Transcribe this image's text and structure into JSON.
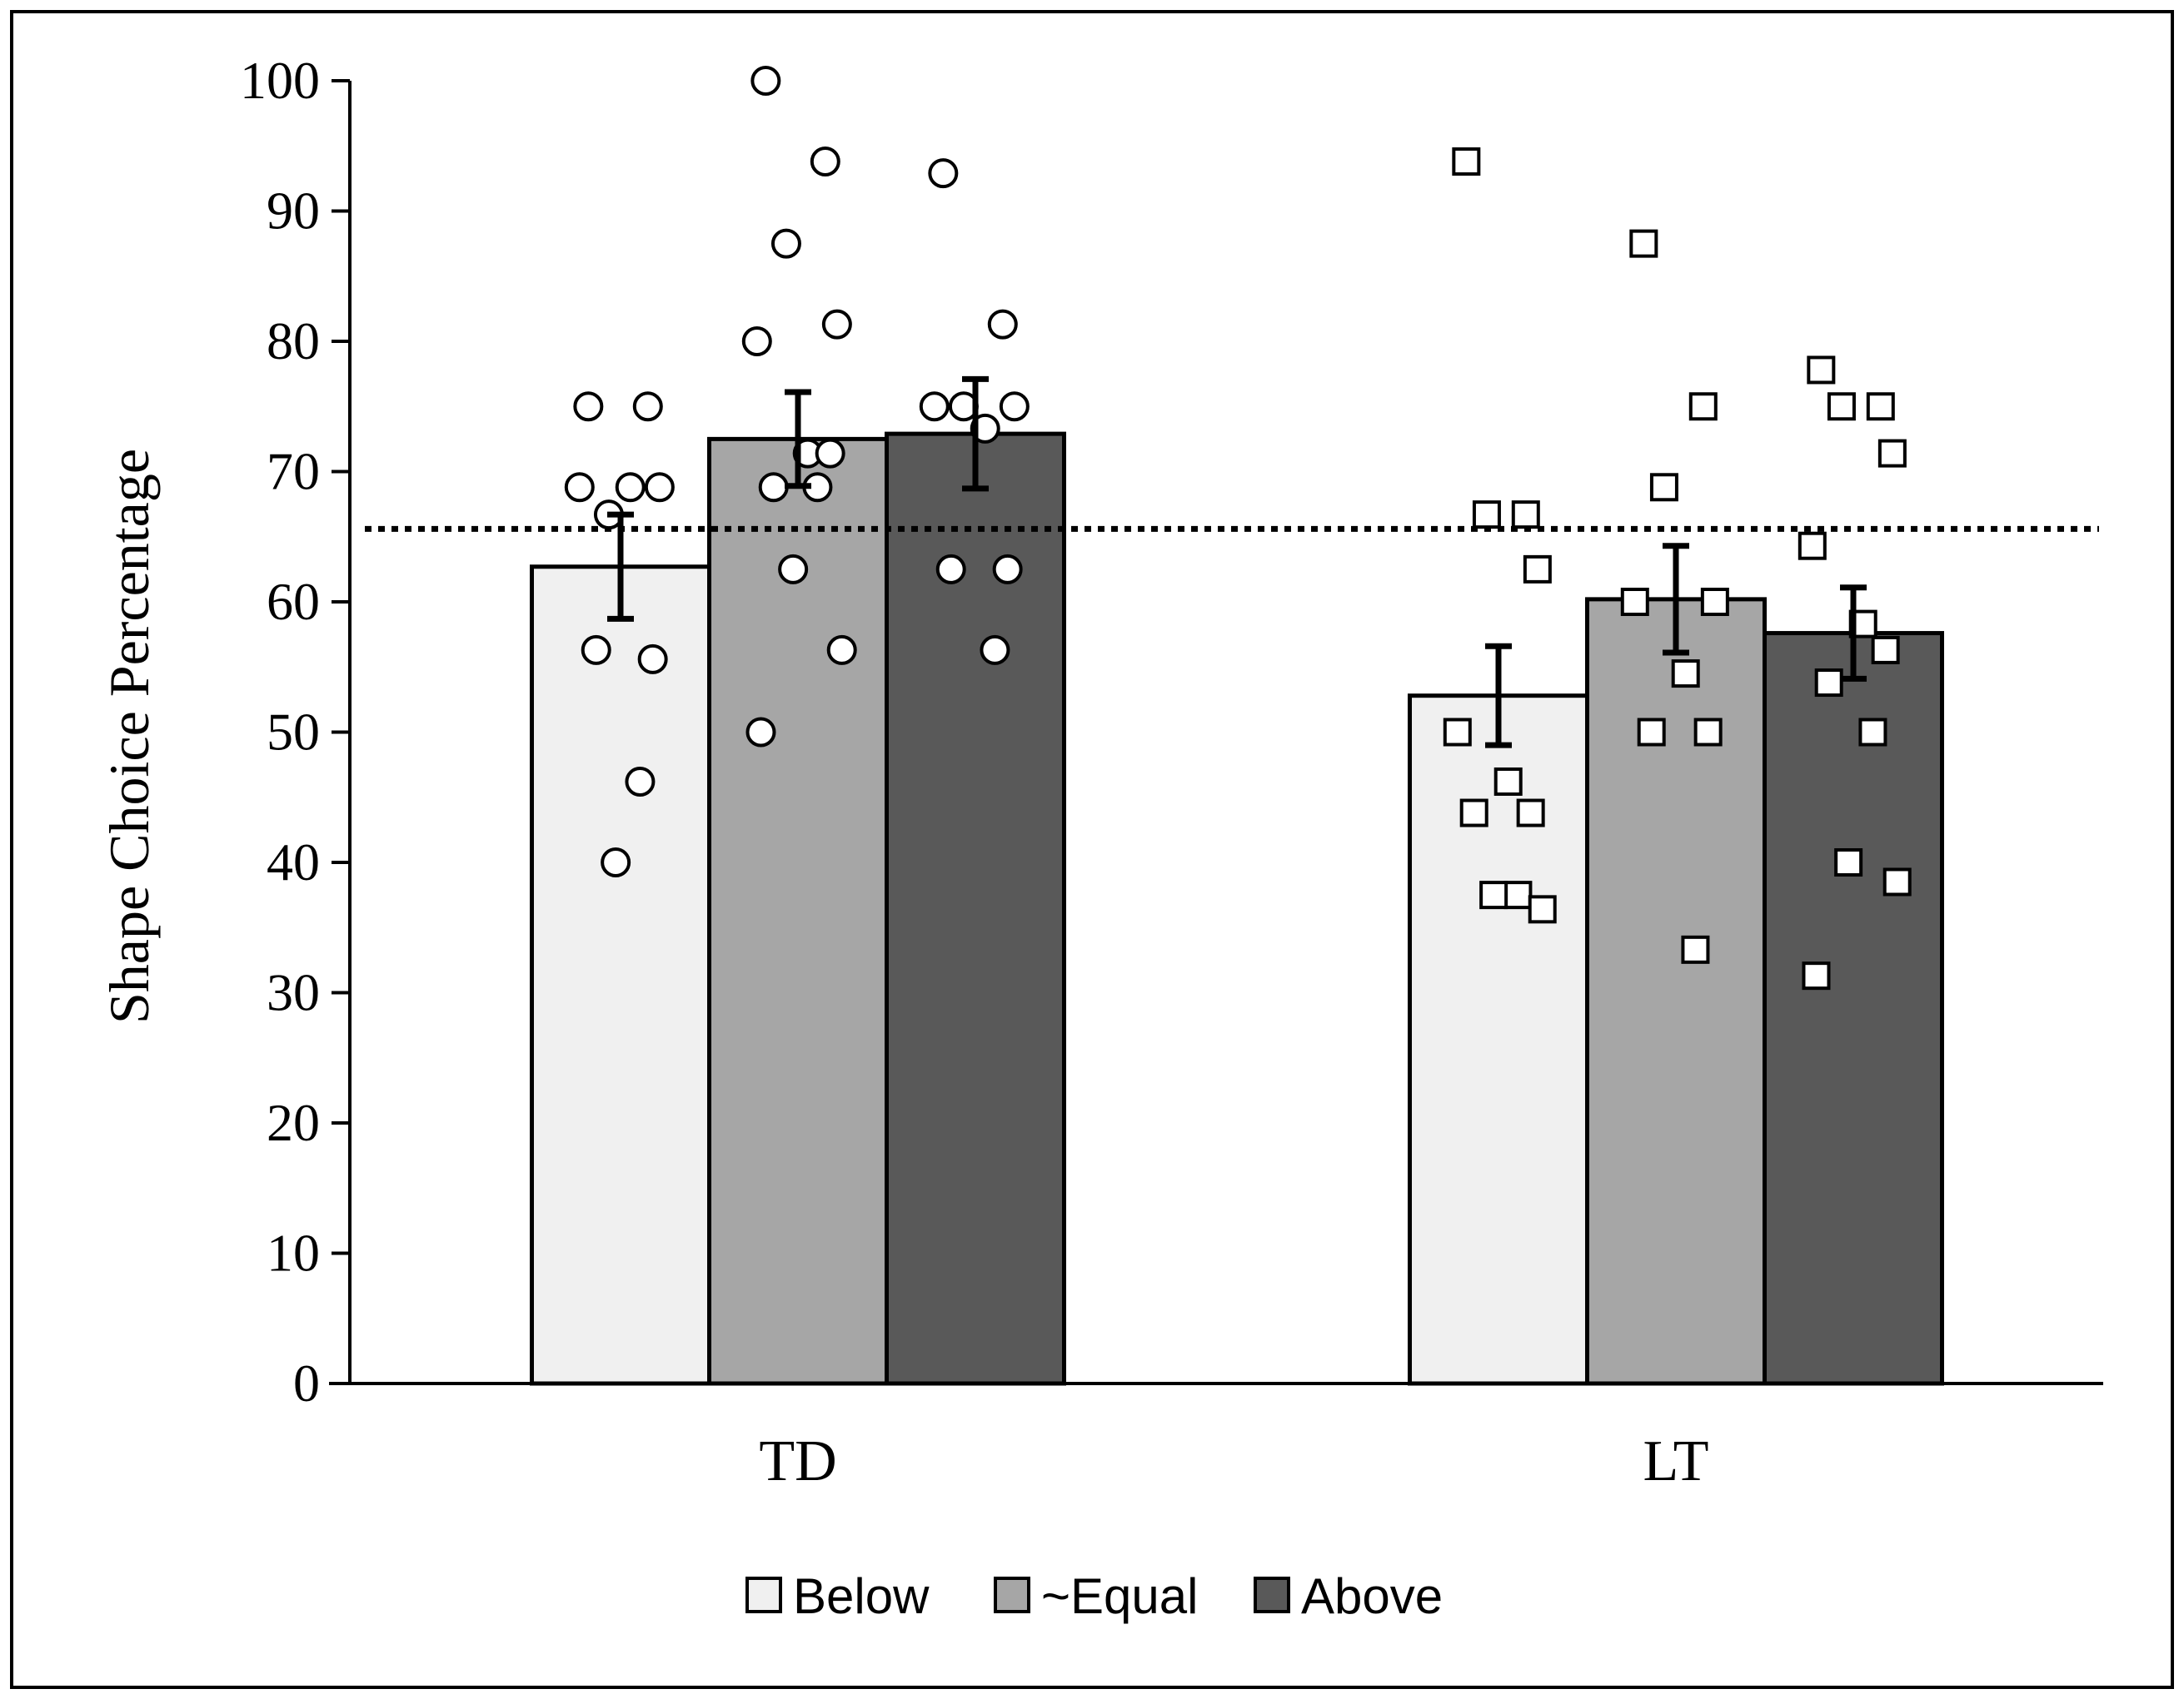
{
  "chart_data": {
    "type": "bar",
    "title": "",
    "xlabel": "",
    "ylabel": "Shape Choice Percentage",
    "ylim": [
      0,
      100
    ],
    "yticks": [
      0,
      10,
      20,
      30,
      40,
      50,
      60,
      70,
      80,
      90,
      100
    ],
    "categories": [
      "TD",
      "LT"
    ],
    "reference_line": {
      "y": 65.6,
      "style": "dotted"
    },
    "series": [
      {
        "name": "Below",
        "color": "#f0f0f0",
        "values": [
          62.7,
          52.8
        ],
        "errors": [
          4.0,
          3.8
        ],
        "points": [
          [
            75,
            75,
            66.7,
            68.8,
            68.8,
            68.8,
            55.6,
            56.3,
            46.2,
            40
          ],
          [
            93.8,
            66.7,
            66.7,
            62.5,
            50,
            46.2,
            43.8,
            43.8,
            37.5,
            37.5,
            36.4
          ]
        ]
      },
      {
        "name": "~Equal",
        "color": "#a6a6a6",
        "values": [
          72.5,
          60.2
        ],
        "errors": [
          3.6,
          4.1
        ],
        "points": [
          [
            100,
            93.8,
            87.5,
            81.3,
            80,
            71.4,
            71.4,
            68.8,
            68.8,
            62.5,
            56.3,
            50
          ],
          [
            87.5,
            75,
            68.8,
            60,
            60,
            54.5,
            50,
            50,
            33.3
          ]
        ]
      },
      {
        "name": "Above",
        "color": "#595959",
        "values": [
          72.9,
          57.6
        ],
        "errors": [
          4.2,
          3.5
        ],
        "points": [
          [
            92.9,
            81.3,
            75,
            75,
            75,
            73.3,
            62.5,
            62.5,
            56.3
          ],
          [
            77.8,
            75,
            75,
            71.4,
            64.3,
            58.3,
            56.3,
            53.8,
            50,
            40,
            38.5,
            31.3
          ]
        ]
      }
    ],
    "markers": [
      "circle",
      "square"
    ],
    "legend_position": "bottom-center"
  }
}
